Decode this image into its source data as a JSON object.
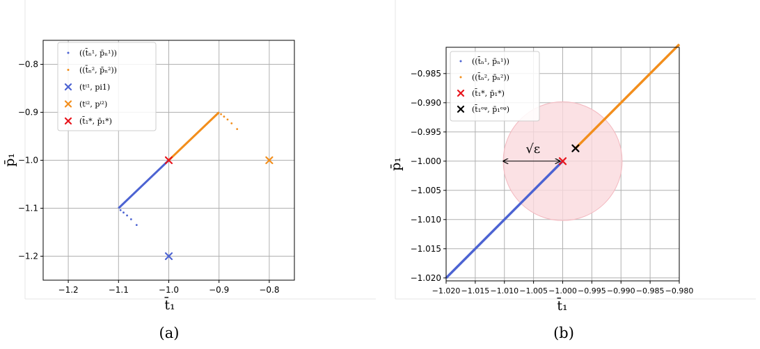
{
  "chart_data": [
    {
      "type": "scatter",
      "caption": "(a)",
      "xlabel": "t̄₁",
      "ylabel": "p̄₁",
      "xlim": [
        -1.25,
        -0.75
      ],
      "ylim": [
        -1.25,
        -0.75
      ],
      "xticks": [
        -1.2,
        -1.1,
        -1.0,
        -0.9,
        -0.8
      ],
      "xtick_labels": [
        "−1.2",
        "−1.1",
        "−1.0",
        "−0.9",
        "−0.8"
      ],
      "yticks": [
        -0.8,
        -0.9,
        -1.0,
        -1.1,
        -1.2
      ],
      "ytick_labels": [
        "−0.8",
        "−0.9",
        "−1.0",
        "−1.1",
        "−1.2"
      ],
      "grid": true,
      "legend_position": "top-left",
      "colors": {
        "blue": "#4c63d2",
        "orange": "#f28e1c",
        "red": "#e8141c"
      },
      "legend": [
        {
          "label": "((t̄ₙ¹, p̄ₙ¹))",
          "marker": "dot",
          "color": "#4c63d2"
        },
        {
          "label": "((t̄ₙ², p̄ₙ²))",
          "marker": "dot",
          "color": "#f28e1c"
        },
        {
          "label": "(tⁱ¹, pi1)",
          "marker": "x",
          "color": "#4c63d2"
        },
        {
          "label": "(tⁱ², pⁱ²)",
          "marker": "x",
          "color": "#f28e1c"
        },
        {
          "label": "(t̄₁*, p̄₁*)",
          "marker": "x",
          "color": "#e8141c"
        }
      ],
      "series": [
        {
          "color": "#4c63d2",
          "marker": "dot",
          "kind": "segment",
          "from": [
            -1.1,
            -1.1
          ],
          "to": [
            -1.0,
            -1.0
          ]
        },
        {
          "color": "#4c63d2",
          "marker": "dot",
          "kind": "points",
          "x": [
            -1.096,
            -1.09,
            -1.083,
            -1.075,
            -1.064
          ],
          "y": [
            -1.104,
            -1.109,
            -1.115,
            -1.123,
            -1.135
          ]
        },
        {
          "color": "#f28e1c",
          "marker": "dot",
          "kind": "segment",
          "from": [
            -1.0,
            -1.0
          ],
          "to": [
            -0.9,
            -0.9
          ]
        },
        {
          "color": "#f28e1c",
          "marker": "dot",
          "kind": "points",
          "x": [
            -0.896,
            -0.89,
            -0.883,
            -0.875,
            -0.864
          ],
          "y": [
            -0.904,
            -0.909,
            -0.915,
            -0.923,
            -0.935
          ]
        },
        {
          "color": "#4c63d2",
          "marker": "x",
          "kind": "points",
          "x": [
            -1.0
          ],
          "y": [
            -1.2
          ]
        },
        {
          "color": "#f28e1c",
          "marker": "x",
          "kind": "points",
          "x": [
            -0.8
          ],
          "y": [
            -1.0
          ]
        },
        {
          "color": "#e8141c",
          "marker": "x",
          "kind": "points",
          "x": [
            -1.0
          ],
          "y": [
            -1.0
          ]
        }
      ]
    },
    {
      "type": "scatter",
      "caption": "(b)",
      "xlabel": "t̄₁",
      "ylabel": "p̄₁",
      "xlim": [
        -1.02,
        -0.98
      ],
      "ylim": [
        -1.0205,
        -0.9805
      ],
      "xticks": [
        -1.02,
        -1.015,
        -1.01,
        -1.005,
        -1.0,
        -0.995,
        -0.99,
        -0.985,
        -0.98
      ],
      "xtick_labels": [
        "−1.020",
        "−1.015",
        "−1.010",
        "−1.005",
        "−1.000",
        "−0.995",
        "−0.990",
        "−0.985",
        "−0.980"
      ],
      "yticks": [
        -0.985,
        -0.99,
        -0.995,
        -1.0,
        -1.005,
        -1.01,
        -1.015,
        -1.02
      ],
      "ytick_labels": [
        "−0.985",
        "−0.990",
        "−0.995",
        "−1.000",
        "−1.005",
        "−1.010",
        "−1.015",
        "−1.020"
      ],
      "grid": true,
      "legend_position": "top-left",
      "colors": {
        "blue": "#4c63d2",
        "orange": "#f28e1c",
        "red": "#e8141c",
        "black": "#000000",
        "circle": "#fadadd"
      },
      "legend": [
        {
          "label": "((t̄ₙ¹, p̄ₙ¹))",
          "marker": "dot",
          "color": "#4c63d2"
        },
        {
          "label": "((t̄ₙ², p̄ₙ²))",
          "marker": "dot",
          "color": "#f28e1c"
        },
        {
          "label": "(t̄₁*, p̄₁*)",
          "marker": "x",
          "color": "#e8141c"
        },
        {
          "label": "(t̄₁ᵉᵠ, p̄₁ᵉᵠ)",
          "marker": "x",
          "color": "#000000"
        }
      ],
      "series": [
        {
          "color": "#4c63d2",
          "marker": "dot",
          "kind": "segment",
          "from": [
            -1.02,
            -1.02
          ],
          "to": [
            -1.0,
            -1.0
          ]
        },
        {
          "color": "#f28e1c",
          "marker": "dot",
          "kind": "segment",
          "from": [
            -0.9978,
            -0.9978
          ],
          "to": [
            -0.98,
            -0.98
          ]
        },
        {
          "color": "#e8141c",
          "marker": "x",
          "kind": "points",
          "x": [
            -1.0
          ],
          "y": [
            -1.0
          ]
        },
        {
          "color": "#000000",
          "marker": "x",
          "kind": "points",
          "x": [
            -0.9978
          ],
          "y": [
            -0.9978
          ]
        }
      ],
      "circle": {
        "center": [
          -1.0,
          -1.0
        ],
        "radius": 0.0102
      },
      "annotation": {
        "text": "√ε",
        "arrow_from": [
          -1.0,
          -1.0
        ],
        "arrow_to": [
          -1.0102,
          -1.0
        ]
      }
    }
  ]
}
